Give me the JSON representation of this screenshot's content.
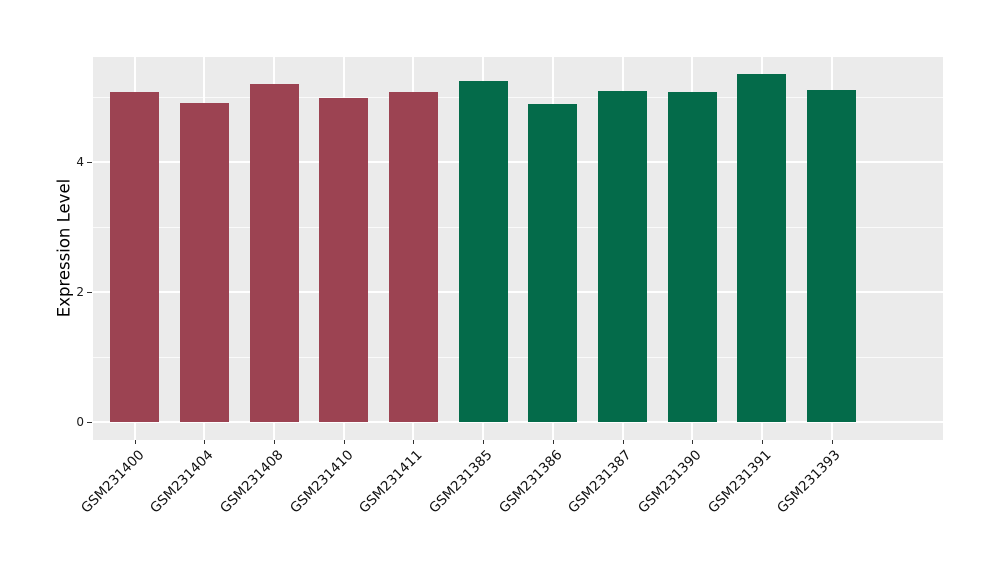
{
  "chart_data": {
    "type": "bar",
    "title": "",
    "xlabel": "",
    "ylabel": "Expression Level",
    "categories": [
      "GSM231400",
      "GSM231404",
      "GSM231408",
      "GSM231410",
      "GSM231411",
      "GSM231385",
      "GSM231386",
      "GSM231387",
      "GSM231390",
      "GSM231391",
      "GSM231393"
    ],
    "values": [
      5.08,
      4.91,
      5.2,
      4.98,
      5.08,
      5.25,
      4.9,
      5.1,
      5.08,
      5.35,
      5.11
    ],
    "groups": [
      "group1",
      "group1",
      "group1",
      "group1",
      "group1",
      "group2",
      "group2",
      "group2",
      "group2",
      "group2",
      "group2"
    ],
    "group_colors": {
      "group1": "#9C4352",
      "group2": "#046B4A"
    },
    "bar_width_fraction": 0.7,
    "ylim": [
      0,
      5.6
    ],
    "yticks": [
      0,
      2,
      4
    ],
    "yticks_minor": [
      1,
      3,
      5
    ],
    "grid": "on",
    "legend": "none",
    "panel_background": "#EBEBEB",
    "gridline_color": "#FFFFFF",
    "tick_color": "#333333",
    "x_tick_rotation_deg": 45
  }
}
